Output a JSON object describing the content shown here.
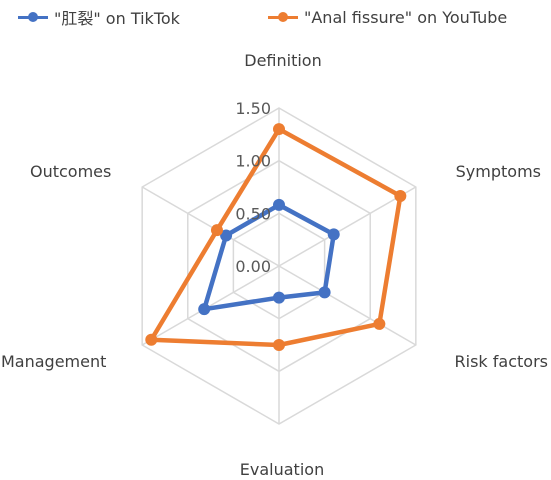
{
  "chart_data": {
    "type": "radar",
    "categories": [
      "Definition",
      "Symptoms",
      "Risk factors",
      "Evaluation",
      "Management",
      "Outcomes"
    ],
    "r_ticks": [
      "0.00",
      "0.50",
      "1.00",
      "1.50"
    ],
    "r_range": [
      0,
      1.5
    ],
    "grid": true,
    "legend_position": "top",
    "series": [
      {
        "name": "\"肛裂\" on TikTok",
        "color": "#4472C4",
        "values": [
          0.58,
          0.6,
          0.5,
          0.3,
          0.82,
          0.58
        ]
      },
      {
        "name": "\"Anal fissure\" on YouTube",
        "color": "#ED7D31",
        "values": [
          1.3,
          1.33,
          1.1,
          0.75,
          1.4,
          0.68
        ]
      }
    ]
  }
}
